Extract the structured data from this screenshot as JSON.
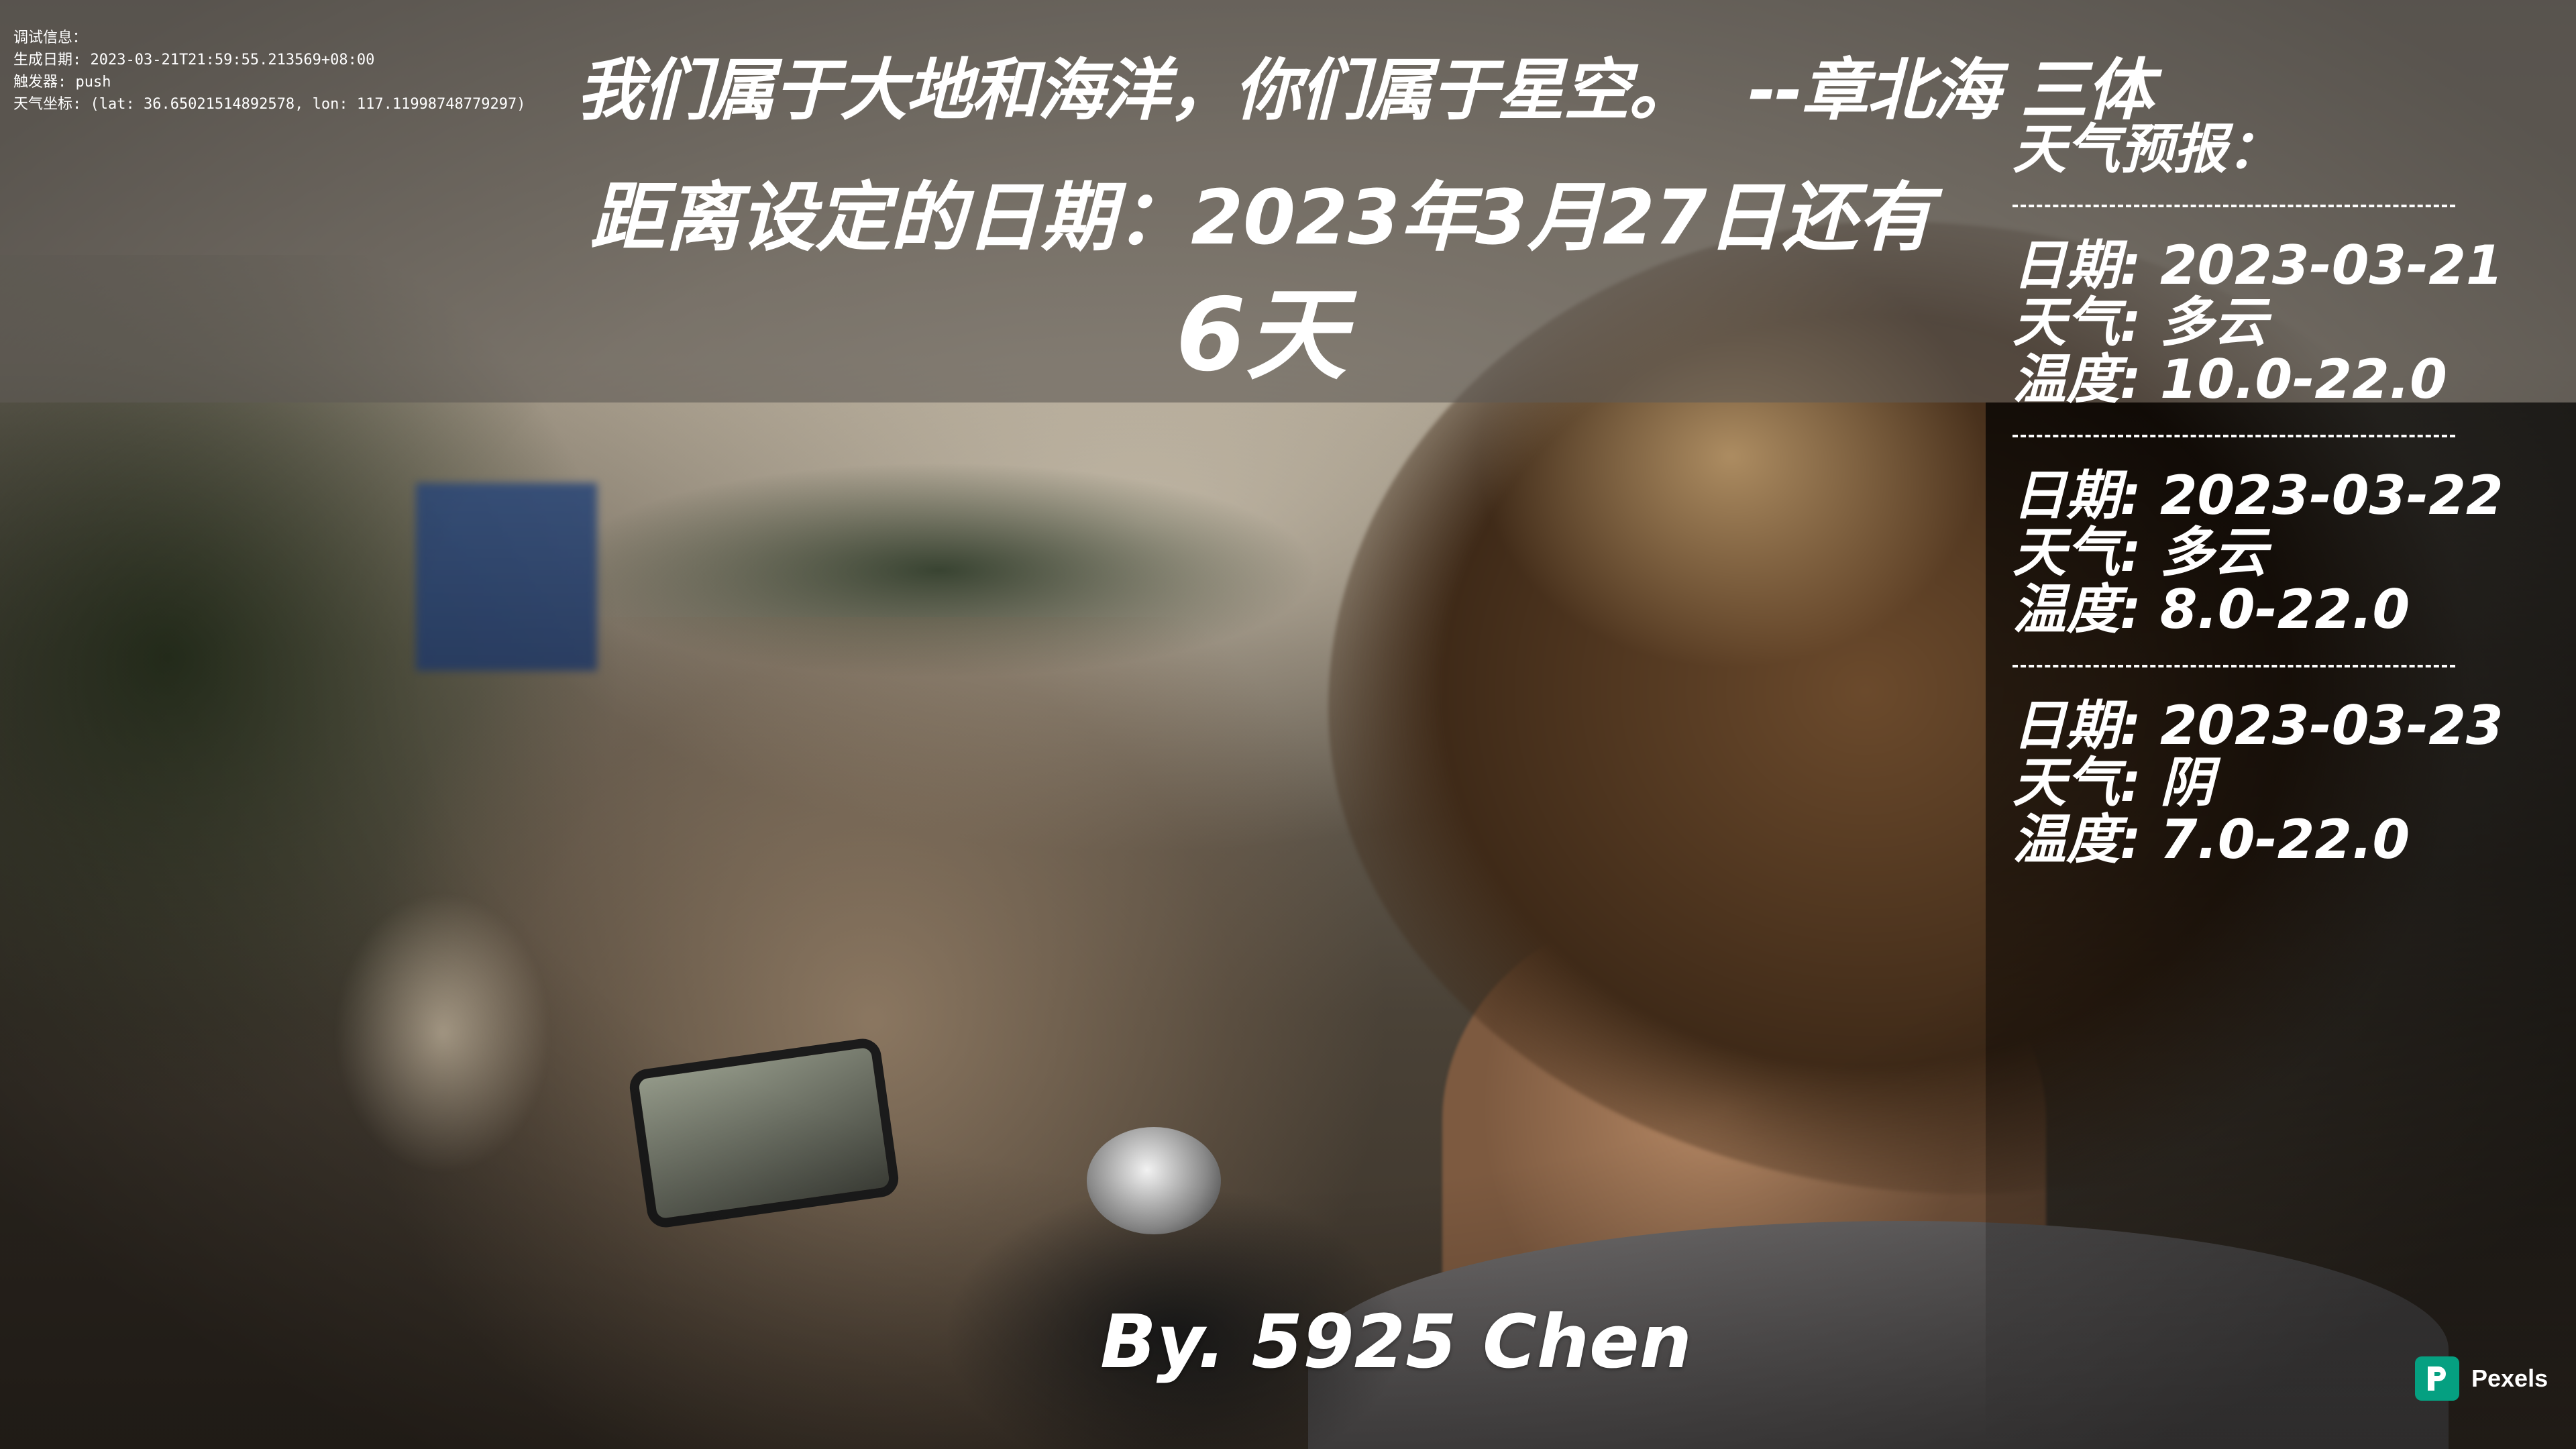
{
  "debug": {
    "line1": "调试信息：",
    "line2": "生成日期: 2023-03-21T21:59:55.213569+08:00",
    "line3": "触发器: push",
    "line4": "天气坐标: (lat: 36.65021514892578, lon: 117.11998748779297)"
  },
  "quote": {
    "text": "我们属于大地和海洋，你们属于星空。",
    "author": "--章北海 三体"
  },
  "countdown": {
    "target_text": "距离设定的日期：2023年3月27日还有",
    "days": "6天"
  },
  "forecast": {
    "title": "天气预报：",
    "days": [
      {
        "date": "日期: 2023-03-21",
        "weather": "天气: 多云",
        "temp": "温度: 10.0-22.0"
      },
      {
        "date": "日期: 2023-03-22",
        "weather": "天气: 多云",
        "temp": "温度: 8.0-22.0"
      },
      {
        "date": "日期: 2023-03-23",
        "weather": "天气: 阴",
        "temp": "温度: 7.0-22.0"
      }
    ]
  },
  "signature": "By. 5925 Chen",
  "pexels": {
    "label": "Pexels",
    "icon": "pexels-logo-icon",
    "brand_color": "#05a081"
  },
  "colors": {
    "text": "#ffffff",
    "top_band": "rgba(95,90,85,0.62)"
  }
}
